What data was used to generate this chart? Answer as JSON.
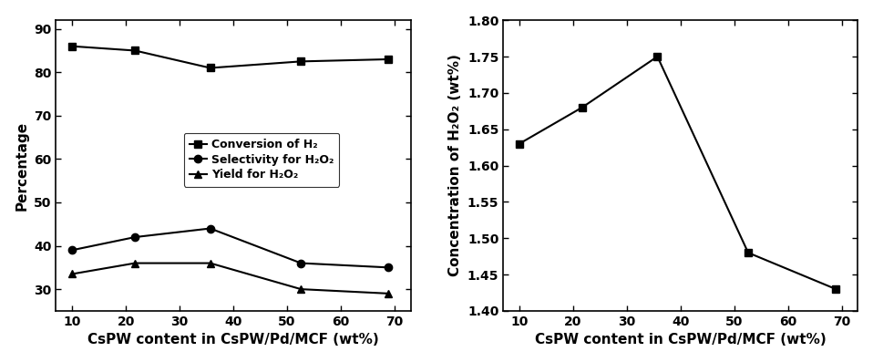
{
  "x": [
    10.0,
    21.7,
    35.7,
    52.6,
    68.9
  ],
  "conversion_h2": [
    86,
    85,
    81,
    82.5,
    83
  ],
  "selectivity_h2o2": [
    39,
    42,
    44,
    36,
    35
  ],
  "yield_h2o2": [
    33.5,
    36,
    36,
    30,
    29
  ],
  "concentration_h2o2": [
    1.63,
    1.68,
    1.75,
    1.48,
    1.43
  ],
  "left_ylabel": "Percentage",
  "left_xlabel": "CsPW content in CsPW/Pd/MCF (wt%)",
  "right_ylabel": "Concentration of H₂O₂ (wt%)",
  "right_xlabel": "CsPW content in CsPW/Pd/MCF (wt%)",
  "legend_conversion": "Conversion of H₂",
  "legend_selectivity": "Selectivity for H₂O₂",
  "legend_yield": "Yield for H₂O₂",
  "left_ylim": [
    25,
    92
  ],
  "left_yticks": [
    30,
    40,
    50,
    60,
    70,
    80,
    90
  ],
  "right_ylim": [
    1.4,
    1.8
  ],
  "right_yticks": [
    1.4,
    1.45,
    1.5,
    1.55,
    1.6,
    1.65,
    1.7,
    1.75,
    1.8
  ],
  "xticks": [
    10,
    20,
    30,
    40,
    50,
    60,
    70
  ],
  "line_color": "#000000",
  "marker_square": "s",
  "marker_circle": "o",
  "marker_triangle": "^",
  "marker_size": 6,
  "linewidth": 1.5,
  "font_size_label": 11,
  "font_size_tick": 10,
  "font_size_legend": 9
}
